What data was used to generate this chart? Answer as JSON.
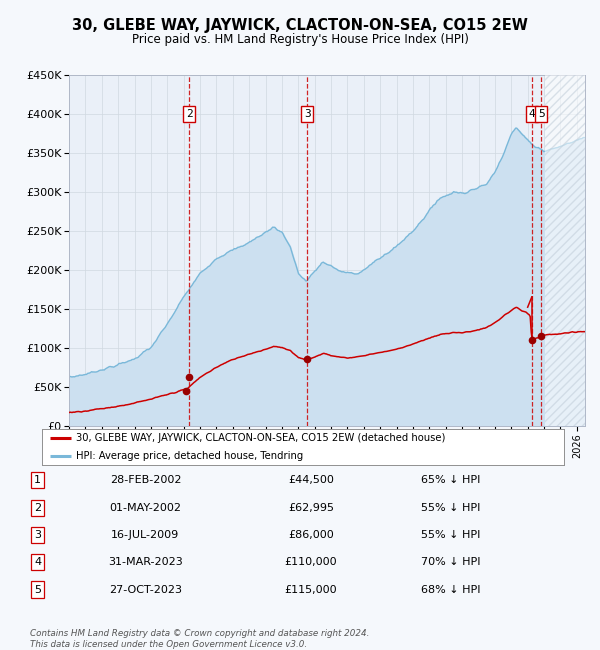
{
  "title": "30, GLEBE WAY, JAYWICK, CLACTON-ON-SEA, CO15 2EW",
  "subtitle": "Price paid vs. HM Land Registry's House Price Index (HPI)",
  "ylim": [
    0,
    450000
  ],
  "yticks": [
    0,
    50000,
    100000,
    150000,
    200000,
    250000,
    300000,
    350000,
    400000,
    450000
  ],
  "ytick_labels": [
    "£0",
    "£50K",
    "£100K",
    "£150K",
    "£200K",
    "£250K",
    "£300K",
    "£350K",
    "£400K",
    "£450K"
  ],
  "hpi_color": "#7ab8d9",
  "hpi_fill": "#cce0f0",
  "price_color": "#cc0000",
  "sale_marker_color": "#990000",
  "vline_color": "#cc0000",
  "grid_color": "#d0d8e0",
  "bg_color": "#f5f8fc",
  "plot_bg": "#eaf0f8",
  "legend_label_price": "30, GLEBE WAY, JAYWICK, CLACTON-ON-SEA, CO15 2EW (detached house)",
  "legend_label_hpi": "HPI: Average price, detached house, Tendring",
  "sales": [
    {
      "num": 1,
      "date_x": 2002.16,
      "price": 44500,
      "show_vline": false
    },
    {
      "num": 2,
      "date_x": 2002.33,
      "price": 62995,
      "show_vline": true
    },
    {
      "num": 3,
      "date_x": 2009.54,
      "price": 86000,
      "show_vline": true
    },
    {
      "num": 4,
      "date_x": 2023.25,
      "price": 110000,
      "show_vline": true
    },
    {
      "num": 5,
      "date_x": 2023.83,
      "price": 115000,
      "show_vline": true
    }
  ],
  "table_rows": [
    {
      "num": 1,
      "date": "28-FEB-2002",
      "price": "£44,500",
      "pct": "65% ↓ HPI"
    },
    {
      "num": 2,
      "date": "01-MAY-2002",
      "price": "£62,995",
      "pct": "55% ↓ HPI"
    },
    {
      "num": 3,
      "date": "16-JUL-2009",
      "price": "£86,000",
      "pct": "55% ↓ HPI"
    },
    {
      "num": 4,
      "date": "31-MAR-2023",
      "price": "£110,000",
      "pct": "70% ↓ HPI"
    },
    {
      "num": 5,
      "date": "27-OCT-2023",
      "price": "£115,000",
      "pct": "68% ↓ HPI"
    }
  ],
  "footer": "Contains HM Land Registry data © Crown copyright and database right 2024.\nThis data is licensed under the Open Government Licence v3.0.",
  "xmin": 1995.0,
  "xmax": 2026.5,
  "hatch_start": 2024.0
}
